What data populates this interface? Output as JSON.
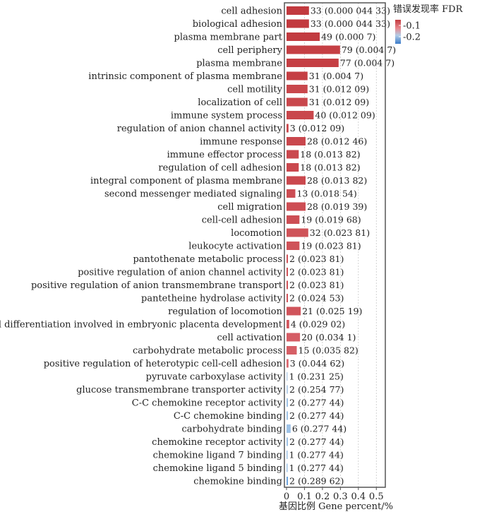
{
  "chart_data": {
    "type": "bar",
    "orientation": "horizontal",
    "xlabel": "基因比例  Gene percent/%",
    "xlim": [
      0,
      0.55
    ],
    "xticks": [
      "0",
      "0.1",
      "0.2",
      "0.3",
      "0.4",
      "0.5"
    ],
    "grid": true,
    "legend": {
      "title": "错误发现率  FDR",
      "placement": "top-right",
      "ticks": [
        "0.1",
        "0.2"
      ],
      "colors": [
        "#c23a3f",
        "#e8868c",
        "#b4cde6",
        "#3a7ac9"
      ]
    },
    "categories": [
      "cell adhesion",
      "biological adhesion",
      "plasma membrane part",
      "cell periphery",
      "plasma membrane",
      "intrinsic component of plasma membrane",
      "cell motility",
      "localization of cell",
      "immune system process",
      "regulation of anion channel activity",
      "immune response",
      "immune effector process",
      "regulation of cell adhesion",
      "integral component of plasma membrane",
      "second messenger mediated signaling",
      "cell migration",
      "cell-cell adhesion",
      "locomotion",
      "leukocyte activation",
      "pantothenate metabolic process",
      "positive regulation of anion channel activity",
      "positive regulation of anion transmembrane transport",
      "pantetheine hydrolase activity",
      "regulation of locomotion",
      "cell differentiation involved in embryonic placenta development",
      "cell activation",
      "carbohydrate metabolic process",
      "positive regulation of heterotypic cell-cell adhesion",
      "pyruvate carboxylase activity",
      "glucose transmembrane transporter activity",
      "C-C chemokine receptor activity",
      "C-C chemokine binding",
      "carbohydrate binding",
      "chemokine receptor activity",
      "chemokine ligand 7 binding",
      "chemokine ligand 5 binding",
      "chemokine binding"
    ],
    "values": [
      0.125,
      0.125,
      0.185,
      0.298,
      0.29,
      0.117,
      0.117,
      0.117,
      0.151,
      0.011,
      0.106,
      0.068,
      0.068,
      0.106,
      0.049,
      0.106,
      0.072,
      0.121,
      0.072,
      0.008,
      0.008,
      0.008,
      0.008,
      0.079,
      0.015,
      0.075,
      0.057,
      0.011,
      0.004,
      0.008,
      0.008,
      0.008,
      0.023,
      0.008,
      0.004,
      0.004,
      0.008
    ],
    "fdr": [
      4.43e-05,
      4.43e-05,
      0.0007,
      0.0047,
      0.0047,
      0.0047,
      0.01209,
      0.01209,
      0.01209,
      0.01209,
      0.01246,
      0.01382,
      0.01382,
      0.01382,
      0.01854,
      0.01939,
      0.01968,
      0.02381,
      0.02381,
      0.02381,
      0.02381,
      0.02381,
      0.02453,
      0.02519,
      0.02902,
      0.0341,
      0.03582,
      0.04462,
      0.23125,
      0.25477,
      0.27744,
      0.27744,
      0.27744,
      0.27744,
      0.27744,
      0.27744,
      0.28962
    ],
    "data_labels": [
      "33 (0.000 044 33)",
      "33 (0.000 044 33)",
      "49 (0.000 7)",
      "79 (0.004 7)",
      "77 (0.004 7)",
      "31 (0.004 7)",
      "31 (0.012 09)",
      "31 (0.012 09)",
      "40 (0.012 09)",
      "3 (0.012 09)",
      "28 (0.012 46)",
      "18 (0.013 82)",
      "18 (0.013 82)",
      "28 (0.013 82)",
      "13 (0.018 54)",
      "28 (0.019 39)",
      "19 (0.019 68)",
      "32 (0.023 81)",
      "19 (0.023 81)",
      "2 (0.023 81)",
      "2 (0.023 81)",
      "2 (0.023 81)",
      "2 (0.024 53)",
      "21 (0.025 19)",
      "4 (0.029 02)",
      "20 (0.034 1)",
      "15 (0.035 82)",
      "3 (0.044 62)",
      "1 (0.231 25)",
      "2 (0.254 77)",
      "2 (0.277 44)",
      "2 (0.277 44)",
      "6 (0.277 44)",
      "2 (0.277 44)",
      "1 (0.277 44)",
      "1 (0.277 44)",
      "2 (0.289 62)"
    ]
  }
}
